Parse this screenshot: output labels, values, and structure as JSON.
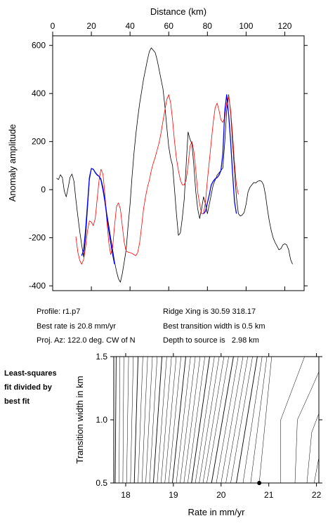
{
  "chart_data": [
    {
      "type": "line",
      "xlabel": "Distance (km)",
      "ylabel": "Anomaly amplitude",
      "xlim": [
        0,
        130
      ],
      "ylim": [
        -420,
        640
      ],
      "xticks": [
        0,
        20,
        40,
        60,
        80,
        100,
        120
      ],
      "yticks": [
        -400,
        -200,
        0,
        200,
        400,
        600
      ],
      "x_axis_position": "top",
      "grid": false,
      "series": [
        {
          "color": "#000000",
          "points": [
            [
              2,
              48
            ],
            [
              3,
              42
            ],
            [
              4,
              62
            ],
            [
              5,
              50
            ],
            [
              6,
              -5
            ],
            [
              7,
              -30
            ],
            [
              8,
              8
            ],
            [
              9,
              52
            ],
            [
              10,
              65
            ],
            [
              11,
              35
            ],
            [
              12,
              -40
            ],
            [
              13,
              -110
            ],
            [
              14,
              -175
            ],
            [
              15,
              -230
            ],
            [
              16,
              -280
            ],
            [
              17,
              -200
            ],
            [
              18,
              -80
            ],
            [
              19,
              40
            ],
            [
              20,
              88
            ],
            [
              21,
              85
            ],
            [
              22,
              70
            ],
            [
              23,
              60
            ],
            [
              24,
              55
            ],
            [
              25,
              45
            ],
            [
              26,
              10
            ],
            [
              27,
              -40
            ],
            [
              28,
              -100
            ],
            [
              29,
              -150
            ],
            [
              30,
              -200
            ],
            [
              31,
              -250
            ],
            [
              32,
              -300
            ],
            [
              33,
              -340
            ],
            [
              34,
              -370
            ],
            [
              35,
              -385
            ],
            [
              36,
              -350
            ],
            [
              37,
              -300
            ],
            [
              38,
              -250
            ],
            [
              39,
              -150
            ],
            [
              40,
              -60
            ],
            [
              41,
              50
            ],
            [
              42,
              150
            ],
            [
              43,
              230
            ],
            [
              44,
              300
            ],
            [
              45,
              360
            ],
            [
              46,
              410
            ],
            [
              47,
              460
            ],
            [
              48,
              500
            ],
            [
              49,
              540
            ],
            [
              50,
              575
            ],
            [
              51,
              590
            ],
            [
              52,
              580
            ],
            [
              53,
              570
            ],
            [
              54,
              540
            ],
            [
              55,
              500
            ],
            [
              56,
              460
            ],
            [
              57,
              420
            ],
            [
              58,
              350
            ],
            [
              59,
              260
            ],
            [
              60,
              180
            ],
            [
              61,
              130
            ],
            [
              62,
              100
            ],
            [
              63,
              0
            ],
            [
              64,
              -100
            ],
            [
              65,
              -190
            ],
            [
              66,
              -180
            ],
            [
              67,
              -120
            ],
            [
              68,
              -40
            ],
            [
              69,
              100
            ],
            [
              70,
              240
            ],
            [
              71,
              210
            ],
            [
              72,
              190
            ],
            [
              73,
              100
            ],
            [
              74,
              -10
            ],
            [
              75,
              -80
            ],
            [
              76,
              -120
            ],
            [
              77,
              -80
            ],
            [
              78,
              -30
            ],
            [
              79,
              -60
            ],
            [
              80,
              -100
            ],
            [
              81,
              -60
            ],
            [
              82,
              -20
            ],
            [
              83,
              20
            ],
            [
              84,
              40
            ],
            [
              85,
              60
            ],
            [
              86,
              70
            ],
            [
              87,
              80
            ],
            [
              88,
              90
            ],
            [
              89,
              200
            ],
            [
              90,
              330
            ],
            [
              91,
              395
            ],
            [
              92,
              320
            ],
            [
              93,
              200
            ],
            [
              94,
              80
            ],
            [
              95,
              -30
            ],
            [
              96,
              -100
            ],
            [
              97,
              -110
            ],
            [
              98,
              -105
            ],
            [
              99,
              -95
            ],
            [
              100,
              -60
            ],
            [
              101,
              -10
            ],
            [
              102,
              10
            ],
            [
              103,
              20
            ],
            [
              104,
              30
            ],
            [
              105,
              28
            ],
            [
              106,
              35
            ],
            [
              107,
              38
            ],
            [
              108,
              35
            ],
            [
              109,
              20
            ],
            [
              110,
              -20
            ],
            [
              111,
              -80
            ],
            [
              112,
              -130
            ],
            [
              113,
              -170
            ],
            [
              114,
              -200
            ],
            [
              115,
              -220
            ],
            [
              116,
              -235
            ],
            [
              117,
              -250
            ],
            [
              118,
              -245
            ],
            [
              119,
              -230
            ],
            [
              120,
              -225
            ],
            [
              121,
              -230
            ],
            [
              122,
              -250
            ],
            [
              123,
              -290
            ],
            [
              124,
              -310
            ]
          ]
        },
        {
          "color": "#ff0000",
          "points": [
            [
              12,
              -195
            ],
            [
              13,
              -260
            ],
            [
              14,
              -295
            ],
            [
              15,
              -310
            ],
            [
              16,
              -290
            ],
            [
              17,
              -240
            ],
            [
              18,
              -170
            ],
            [
              19,
              -130
            ],
            [
              20,
              -135
            ],
            [
              21,
              -150
            ],
            [
              22,
              -120
            ],
            [
              23,
              -40
            ],
            [
              24,
              40
            ],
            [
              25,
              85
            ],
            [
              26,
              65
            ],
            [
              27,
              -20
            ],
            [
              28,
              -130
            ],
            [
              29,
              -220
            ],
            [
              30,
              -270
            ],
            [
              31,
              -240
            ],
            [
              32,
              -150
            ],
            [
              33,
              -70
            ],
            [
              34,
              -55
            ],
            [
              35,
              -80
            ],
            [
              36,
              -150
            ],
            [
              37,
              -220
            ],
            [
              38,
              -255
            ],
            [
              39,
              -260
            ],
            [
              40,
              -262
            ],
            [
              41,
              -265
            ],
            [
              42,
              -270
            ],
            [
              43,
              -275
            ],
            [
              44,
              -260
            ],
            [
              45,
              -220
            ],
            [
              46,
              -150
            ],
            [
              47,
              -80
            ],
            [
              48,
              -30
            ],
            [
              49,
              10
            ],
            [
              50,
              40
            ],
            [
              51,
              80
            ],
            [
              52,
              110
            ],
            [
              53,
              135
            ],
            [
              54,
              165
            ],
            [
              55,
              195
            ],
            [
              56,
              235
            ],
            [
              57,
              285
            ],
            [
              58,
              330
            ],
            [
              59,
              375
            ],
            [
              60,
              395
            ],
            [
              61,
              360
            ],
            [
              62,
              290
            ],
            [
              63,
              200
            ],
            [
              64,
              130
            ],
            [
              65,
              80
            ],
            [
              66,
              40
            ],
            [
              67,
              20
            ],
            [
              68,
              20
            ],
            [
              69,
              40
            ],
            [
              70,
              100
            ],
            [
              71,
              180
            ],
            [
              72,
              200
            ],
            [
              73,
              160
            ],
            [
              74,
              80
            ],
            [
              75,
              -10
            ],
            [
              76,
              -60
            ],
            [
              77,
              -100
            ],
            [
              78,
              -100
            ],
            [
              79,
              -50
            ],
            [
              80,
              40
            ],
            [
              81,
              120
            ],
            [
              82,
              200
            ],
            [
              83,
              280
            ],
            [
              84,
              340
            ],
            [
              85,
              360
            ],
            [
              86,
              330
            ],
            [
              87,
              290
            ],
            [
              88,
              280
            ],
            [
              89,
              300
            ],
            [
              90,
              360
            ],
            [
              91,
              390
            ],
            [
              92,
              330
            ],
            [
              93,
              230
            ],
            [
              94,
              110
            ],
            [
              95,
              20
            ],
            [
              96,
              -20
            ]
          ]
        },
        {
          "color": "#0000ff",
          "segments": [
            [
              [
                15,
                -275
              ],
              [
                16,
                -250
              ],
              [
                17,
                -170
              ],
              [
                18,
                -60
              ],
              [
                19,
                50
              ],
              [
                20,
                88
              ],
              [
                21,
                85
              ],
              [
                22,
                72
              ],
              [
                23,
                62
              ],
              [
                24,
                55
              ],
              [
                25,
                40
              ],
              [
                26,
                0
              ],
              [
                27,
                -50
              ],
              [
                28,
                -110
              ],
              [
                29,
                -170
              ],
              [
                30,
                -220
              ],
              [
                31,
                -270
              ],
              [
                32,
                -310
              ]
            ],
            [
              [
                78,
                -100
              ],
              [
                79,
                -90
              ],
              [
                80,
                -55
              ],
              [
                81,
                -20
              ],
              [
                82,
                20
              ],
              [
                83,
                35
              ],
              [
                84,
                45
              ],
              [
                85,
                50
              ],
              [
                86,
                60
              ],
              [
                87,
                80
              ],
              [
                88,
                150
              ],
              [
                89,
                330
              ],
              [
                90,
                395
              ],
              [
                91,
                310
              ],
              [
                92,
                200
              ],
              [
                93,
                70
              ],
              [
                94,
                -50
              ],
              [
                95,
                -100
              ]
            ]
          ]
        }
      ]
    },
    {
      "type": "contour",
      "xlabel": "Rate in mm/yr",
      "ylabel": "Transition width in km",
      "xlim": [
        17.75,
        22.05
      ],
      "ylim": [
        0.5,
        1.5
      ],
      "xticks": [
        18,
        19,
        20,
        21,
        22
      ],
      "yticks": [
        0.5,
        1.0,
        1.5
      ],
      "ytick_labels": [
        "0.5",
        "1.0",
        "1.5"
      ],
      "contour_bottom_x": [
        17.78,
        17.86,
        17.94,
        18.02,
        18.1,
        18.18,
        18.26,
        18.34,
        18.42,
        18.5,
        18.58,
        18.66,
        18.74,
        18.82,
        18.9,
        18.98,
        19.06,
        19.14,
        19.22,
        19.3,
        19.38,
        19.46,
        19.54,
        19.62,
        19.7,
        19.8,
        19.9,
        20.0,
        20.1,
        20.2,
        20.32,
        20.46,
        20.62,
        20.8
      ],
      "contour_top_x": [
        17.8,
        17.88,
        17.96,
        18.06,
        18.16,
        18.26,
        18.36,
        18.46,
        18.56,
        18.66,
        18.76,
        18.86,
        18.96,
        19.06,
        19.16,
        19.26,
        19.36,
        19.46,
        19.56,
        19.66,
        19.76,
        19.86,
        19.96,
        20.06,
        20.16,
        20.26,
        20.36,
        20.46,
        20.56,
        20.66,
        20.76,
        20.86,
        20.96,
        21.06
      ],
      "right_contours": [
        [
          [
            21.25,
            0.5
          ],
          [
            21.25,
            1.0
          ],
          [
            21.5,
            1.25
          ],
          [
            21.75,
            1.5
          ]
        ],
        [
          [
            21.55,
            0.5
          ],
          [
            21.6,
            1.0
          ],
          [
            21.9,
            1.25
          ],
          [
            22.05,
            1.38
          ]
        ],
        [
          [
            21.8,
            0.5
          ],
          [
            21.9,
            0.9
          ],
          [
            22.05,
            1.05
          ]
        ],
        [
          [
            21.95,
            0.5
          ],
          [
            22.05,
            0.7
          ]
        ]
      ],
      "best_fit_point": [
        20.8,
        0.5
      ]
    }
  ],
  "info": {
    "profile": "Profile: r1.p7",
    "best_rate": "Best rate is 20.8 mm/yr",
    "proj_az": "Proj. Az: 122.0 deg. CW of N",
    "ridge_xing": "Ridge Xing is 30.59 318.17",
    "best_width": "Best transition width is 0.5 km",
    "depth": "Depth to source is   2.98 km"
  },
  "note_lines": [
    "Least-squares",
    "fit divided by",
    "best fit"
  ]
}
